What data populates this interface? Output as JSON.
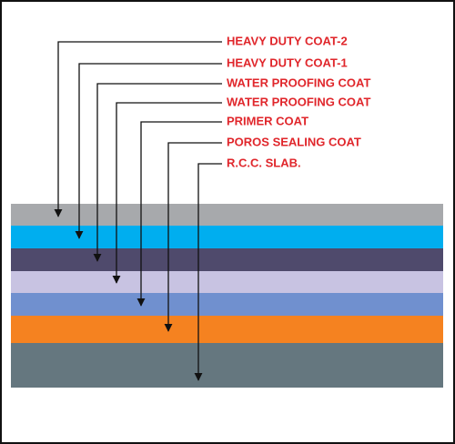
{
  "layers": [
    {
      "label": "HEAVY DUTY COAT-2"
    },
    {
      "label": "HEAVY DUTY COAT-1"
    },
    {
      "label": "WATER PROOFING COAT"
    },
    {
      "label": "WATER PROOFING COAT"
    },
    {
      "label": "PRIMER COAT"
    },
    {
      "label": "POROS SEALING COAT"
    },
    {
      "label": "R.C.C. SLAB."
    }
  ]
}
